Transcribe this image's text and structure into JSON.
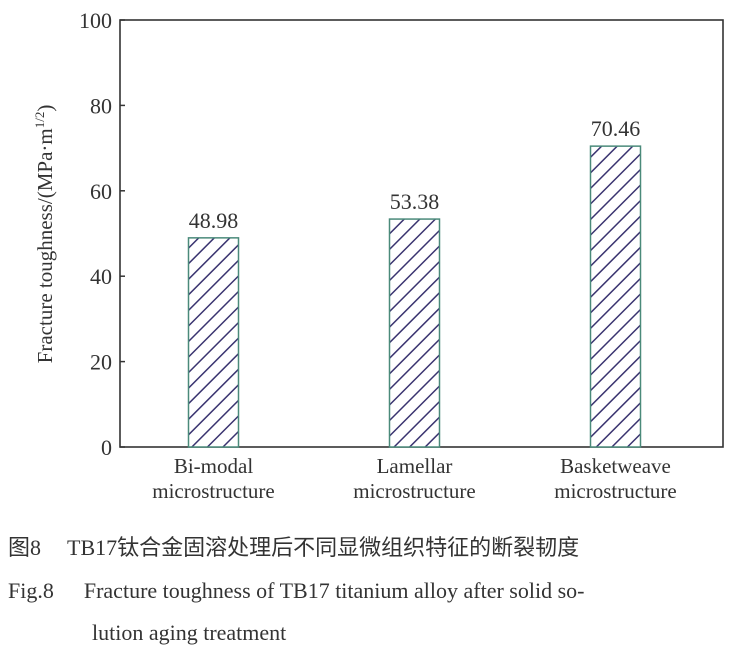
{
  "chart_data": {
    "type": "bar",
    "categories": [
      [
        "Bi-modal",
        "microstructure"
      ],
      [
        "Lamellar",
        "microstructure"
      ],
      [
        "Basketweave",
        "microstructure"
      ]
    ],
    "values": [
      48.98,
      53.38,
      70.46
    ],
    "data_labels": [
      "48.98",
      "53.38",
      "70.46"
    ],
    "title": "",
    "xlabel": "",
    "ylabel": "Fracture toughness/(MPa·m",
    "ylabel_sup": "1/2",
    "ylabel_close": ")",
    "ylim": [
      0,
      100
    ],
    "yticks": [
      0,
      20,
      40,
      60,
      80,
      100
    ],
    "grid": false,
    "bar_fill": "hatched",
    "colors": {
      "hatch": "#3a3470",
      "bar_border": "#4a8a7a",
      "axis": "#333333"
    }
  },
  "caption": {
    "cn_label": "图8",
    "cn_text": "TB17钛合金固溶处理后不同显微组织特征的断裂韧度",
    "en_label": "Fig.8",
    "en_line1": "Fracture toughness of TB17 titanium alloy after solid so-",
    "en_line2": "lution aging treatment"
  }
}
